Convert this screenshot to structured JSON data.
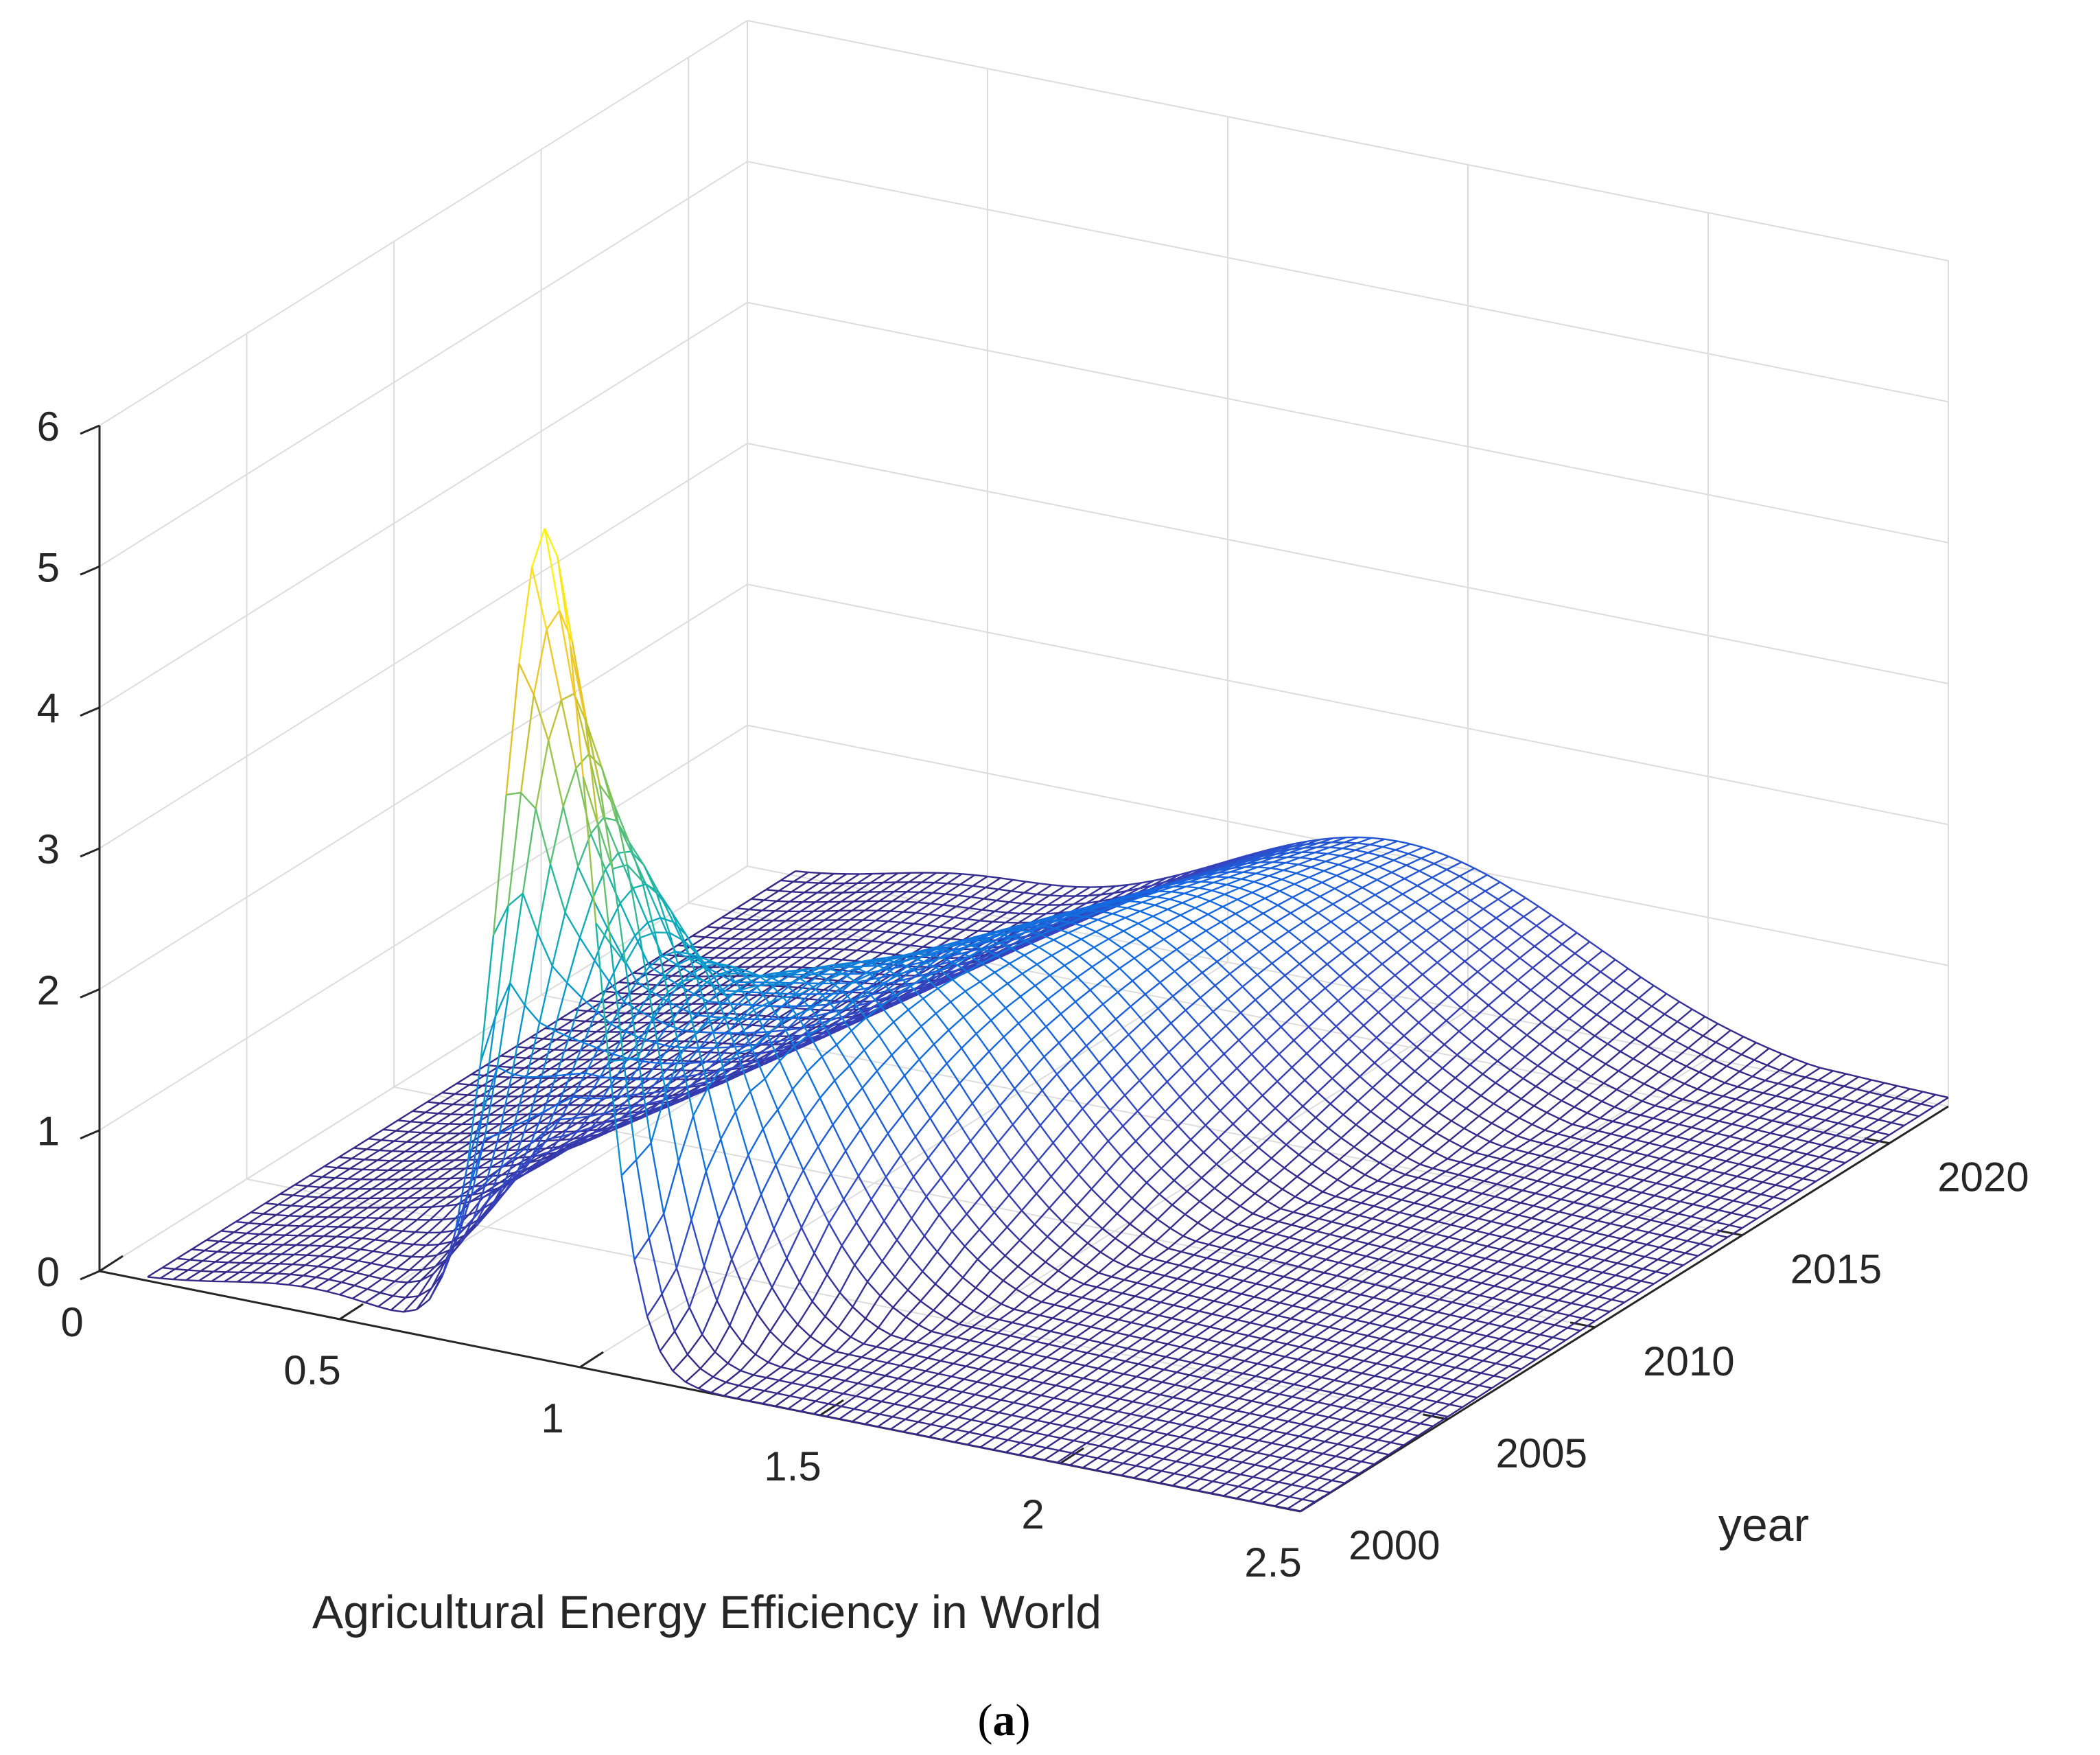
{
  "chart_data": {
    "type": "surface",
    "title": "",
    "xlabel": "Agricultural Energy Efficiency in World",
    "ylabel": "year",
    "zlabel": "",
    "xlim": [
      0,
      2.5
    ],
    "ylim": [
      2000,
      2022
    ],
    "zlim": [
      0,
      6
    ],
    "xticks": [
      "0",
      "0.5",
      "1",
      "1.5",
      "2",
      "2.5"
    ],
    "yticks": [
      "2000",
      "2005",
      "2010",
      "2015",
      "2020"
    ],
    "zticks": [
      "0",
      "1",
      "2",
      "3",
      "4",
      "5",
      "6"
    ],
    "grid": true,
    "colormap": "parula",
    "style": "wireframe mesh",
    "density_peaks_by_year": [
      {
        "year": 2000,
        "peak_x": 0.93,
        "peak_density": 5.9
      },
      {
        "year": 2001,
        "peak_x": 0.92,
        "peak_density": 4.6
      },
      {
        "year": 2002,
        "peak_x": 0.94,
        "peak_density": 3.6
      },
      {
        "year": 2004,
        "peak_x": 0.97,
        "peak_density": 2.4
      },
      {
        "year": 2006,
        "peak_x": 1.02,
        "peak_density": 2.0
      },
      {
        "year": 2010,
        "peak_x": 1.12,
        "peak_density": 1.7
      },
      {
        "year": 2015,
        "peak_x": 1.22,
        "peak_density": 1.45
      },
      {
        "year": 2020,
        "peak_x": 1.32,
        "peak_density": 1.2
      },
      {
        "year": 2022,
        "peak_x": 1.36,
        "peak_density": 1.1
      }
    ],
    "caption": "(a)"
  },
  "caption": {
    "open": "(",
    "letter": "a",
    "close": ")"
  }
}
